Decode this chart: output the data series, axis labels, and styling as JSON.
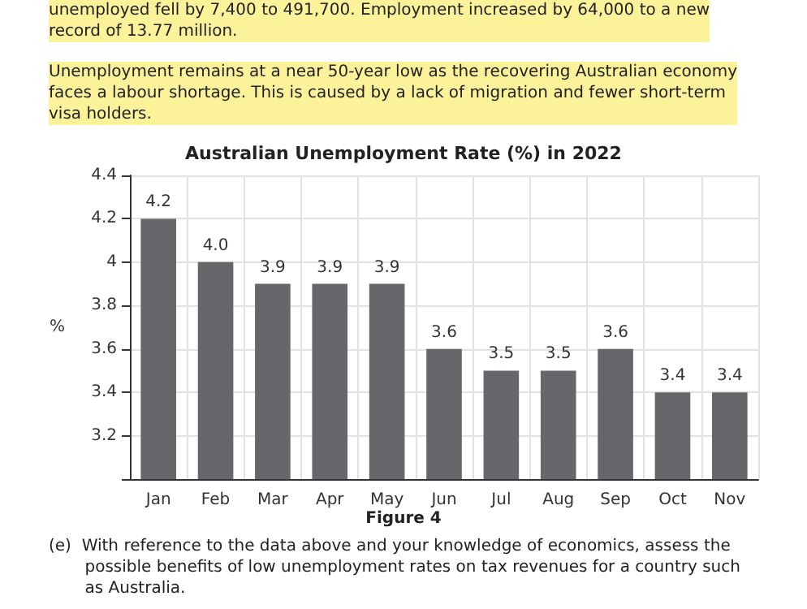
{
  "chart_data": {
    "type": "bar",
    "title": "Australian Unemployment Rate (%) in 2022",
    "ylabel": "%",
    "categories": [
      "Jan",
      "Feb",
      "Mar",
      "Apr",
      "May",
      "Jun",
      "Jul",
      "Aug",
      "Sep",
      "Oct",
      "Nov"
    ],
    "values": [
      4.2,
      4.0,
      3.9,
      3.9,
      3.9,
      3.6,
      3.5,
      3.5,
      3.6,
      3.4,
      3.4
    ],
    "value_labels": [
      "4.2",
      "4.0",
      "3.9",
      "3.9",
      "3.9",
      "3.6",
      "3.5",
      "3.5",
      "3.6",
      "3.4",
      "3.4"
    ],
    "color": "#68666a",
    "ylim": [
      3.0,
      4.4
    ],
    "yticks": [
      {
        "value": 3.0,
        "label": null
      },
      3.2,
      3.4,
      3.6,
      3.8,
      4,
      4.2,
      4.4
    ],
    "grid": true,
    "annotations": [
      "unemployed fell by 7,400 to 491,700. Employment increased by 64,000 to a new\nrecord of 13.77 million.",
      "Unemployment remains at a near 50-year low as the recovering Australian economy\nfaces a labour shortage. This is caused by a lack of migration and fewer short-term\nvisa holders.",
      "Figure 4",
      "(e)  With reference to the data above and your knowledge of economics, assess the\n       possible benefits of low unemployment rates on tax revenues for a country such\n       as Australia."
    ]
  }
}
